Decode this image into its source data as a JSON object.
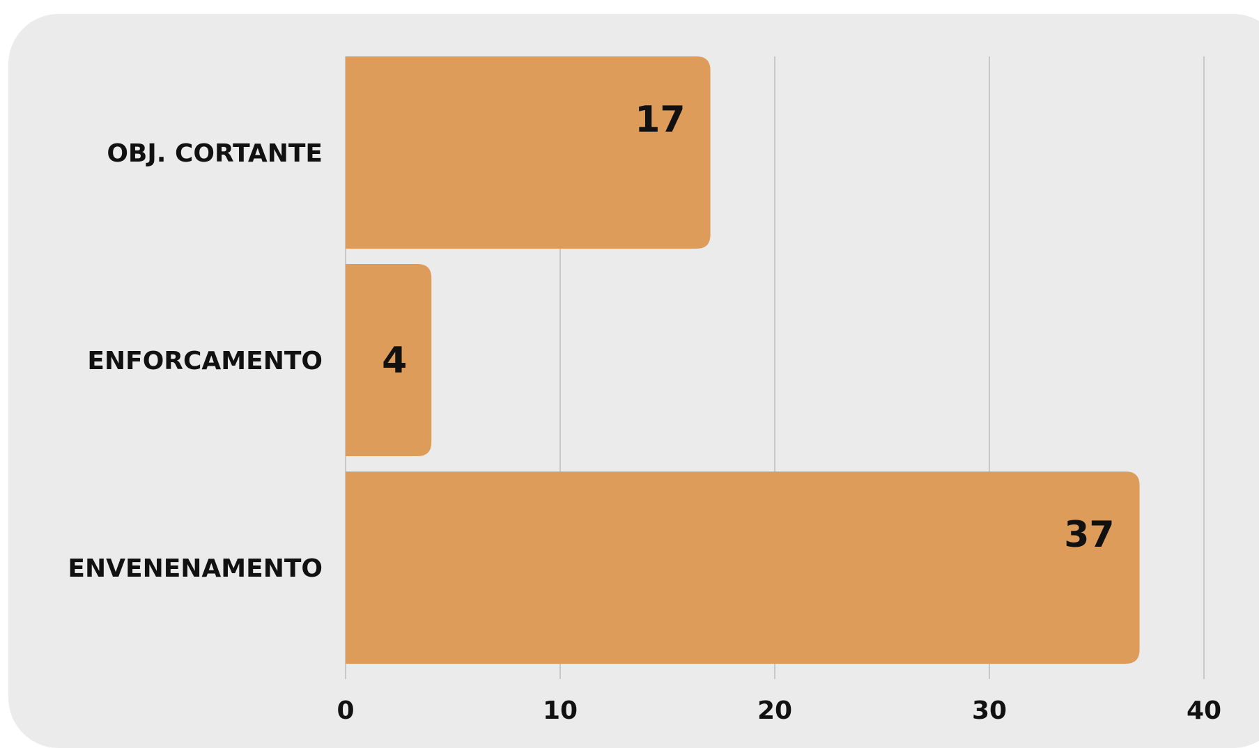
{
  "chart_data": {
    "type": "bar",
    "orientation": "horizontal",
    "categories": [
      "OBJ. CORTANTE",
      "ENFORCAMENTO",
      "ENVENENAMENTO"
    ],
    "values": [
      17,
      4,
      37
    ],
    "xlim": [
      0,
      40
    ],
    "xticks": [
      0,
      10,
      20,
      30,
      40
    ],
    "xtick_labels": [
      "0",
      "10",
      "20",
      "30",
      "40"
    ],
    "data_labels": [
      "17",
      "4",
      "37"
    ],
    "grid": "vertical",
    "legend": "none",
    "colors": {
      "bar": "#de9c5b",
      "background": "#ebebeb",
      "grid": "#bdbdbd",
      "text": "#111111"
    }
  }
}
